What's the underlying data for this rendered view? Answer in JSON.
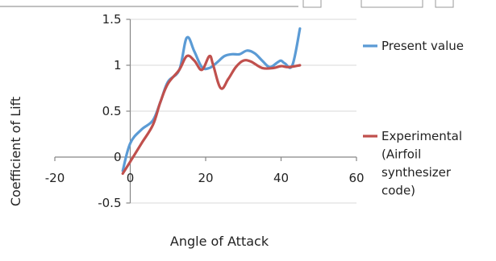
{
  "chart_data": {
    "type": "line",
    "title": "",
    "xlabel": "Angle of Attack",
    "ylabel": "Coefficient of Lift",
    "xlim": [
      -20,
      60
    ],
    "ylim": [
      -0.5,
      1.5
    ],
    "x_ticks": [
      -20,
      0,
      20,
      40,
      60
    ],
    "y_ticks": [
      1.5,
      1,
      0.5,
      0,
      -0.5
    ],
    "x_tick_labels": [
      "-20",
      "0",
      "20",
      "40",
      "60"
    ],
    "y_tick_labels": [
      "1.5",
      "1",
      "0.5",
      "0",
      "-0.5"
    ],
    "grid": "horizontal",
    "legend_position": "right",
    "series": [
      {
        "name": "Present value",
        "color": "#5b9bd5",
        "points": [
          [
            -2,
            -0.15
          ],
          [
            0,
            0.15
          ],
          [
            3,
            0.3
          ],
          [
            6,
            0.4
          ],
          [
            8,
            0.6
          ],
          [
            10,
            0.82
          ],
          [
            13,
            0.95
          ],
          [
            15,
            1.3
          ],
          [
            17,
            1.15
          ],
          [
            19,
            0.98
          ],
          [
            21,
            0.97
          ],
          [
            23,
            1.03
          ],
          [
            25,
            1.1
          ],
          [
            27,
            1.12
          ],
          [
            29,
            1.12
          ],
          [
            31,
            1.16
          ],
          [
            33,
            1.13
          ],
          [
            35,
            1.05
          ],
          [
            37,
            0.98
          ],
          [
            39,
            1.03
          ],
          [
            40,
            1.05
          ],
          [
            41,
            1.02
          ],
          [
            43,
            1.0
          ],
          [
            45,
            1.4
          ]
        ]
      },
      {
        "name": "Experimental (Airfoil synthesizer code)",
        "color": "#c0504d",
        "points": [
          [
            -2,
            -0.18
          ],
          [
            0,
            -0.05
          ],
          [
            3,
            0.15
          ],
          [
            6,
            0.35
          ],
          [
            8,
            0.6
          ],
          [
            10,
            0.8
          ],
          [
            13,
            0.95
          ],
          [
            15,
            1.1
          ],
          [
            17,
            1.05
          ],
          [
            19,
            0.95
          ],
          [
            21,
            1.1
          ],
          [
            22,
            1.0
          ],
          [
            24,
            0.75
          ],
          [
            26,
            0.85
          ],
          [
            28,
            0.98
          ],
          [
            30,
            1.05
          ],
          [
            32,
            1.04
          ],
          [
            35,
            0.97
          ],
          [
            38,
            0.97
          ],
          [
            40,
            0.99
          ],
          [
            42,
            0.98
          ],
          [
            45,
            1.0
          ]
        ]
      }
    ],
    "legend": [
      {
        "label_lines": [
          "Present value"
        ],
        "color": "#5b9bd5"
      },
      {
        "label_lines": [
          "Experimental",
          "(Airfoil",
          "synthesizer",
          "code)"
        ],
        "color": "#c0504d"
      }
    ]
  }
}
